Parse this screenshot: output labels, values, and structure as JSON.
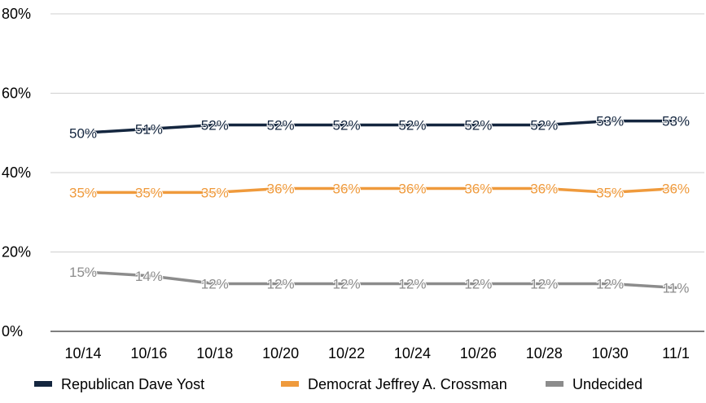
{
  "chart_data": {
    "type": "line",
    "title": "",
    "xlabel": "",
    "ylabel": "",
    "categories": [
      "10/14",
      "10/16",
      "10/18",
      "10/20",
      "10/22",
      "10/24",
      "10/26",
      "10/28",
      "10/30",
      "11/1"
    ],
    "ylim": [
      0,
      80
    ],
    "yticks": [
      0,
      20,
      40,
      60,
      80
    ],
    "ytick_labels": [
      "0%",
      "20%",
      "40%",
      "60%",
      "80%"
    ],
    "grid": true,
    "legend_position": "bottom",
    "series": [
      {
        "name": "Republican Dave Yost",
        "color": "#14263f",
        "values": [
          50,
          51,
          52,
          52,
          52,
          52,
          52,
          52,
          53,
          53
        ],
        "labels": [
          "50%",
          "51%",
          "52%",
          "52%",
          "52%",
          "52%",
          "52%",
          "52%",
          "53%",
          "53%"
        ]
      },
      {
        "name": "Democrat Jeffrey A. Crossman",
        "color": "#ef9a3c",
        "values": [
          35,
          35,
          35,
          36,
          36,
          36,
          36,
          36,
          35,
          36
        ],
        "labels": [
          "35%",
          "35%",
          "35%",
          "36%",
          "36%",
          "36%",
          "36%",
          "36%",
          "35%",
          "36%"
        ]
      },
      {
        "name": "Undecided",
        "color": "#8c8c8c",
        "values": [
          15,
          14,
          12,
          12,
          12,
          12,
          12,
          12,
          12,
          11
        ],
        "labels": [
          "15%",
          "14%",
          "12%",
          "12%",
          "12%",
          "12%",
          "12%",
          "12%",
          "12%",
          "11%"
        ]
      }
    ]
  }
}
